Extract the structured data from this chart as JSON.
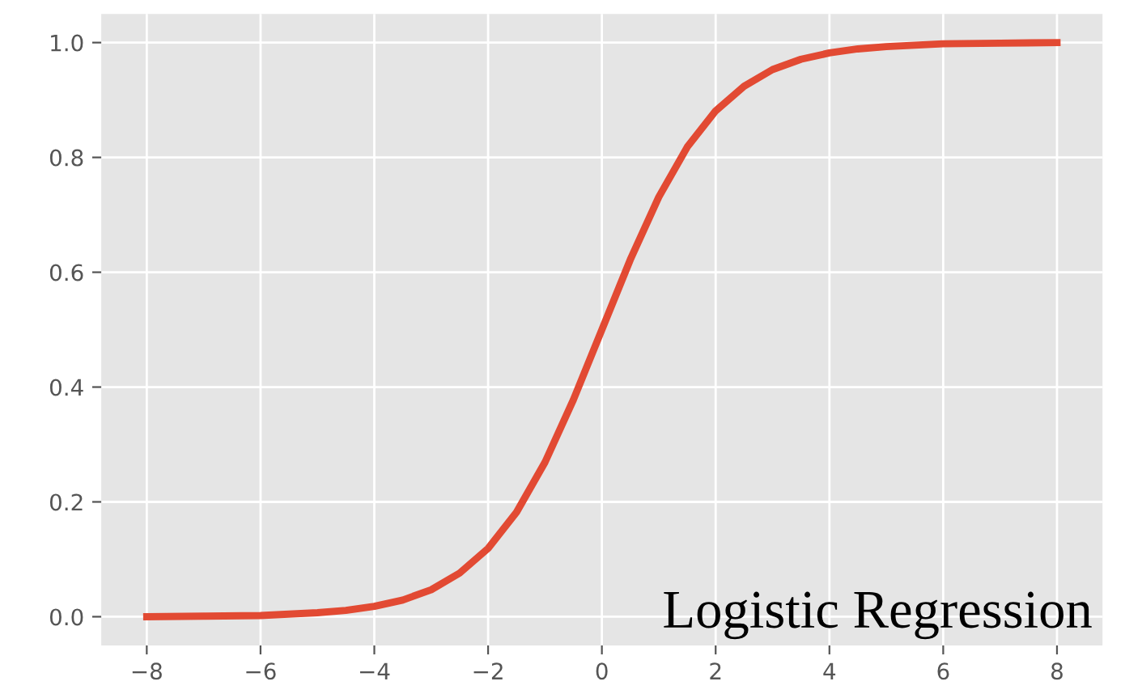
{
  "chart_data": {
    "type": "line",
    "x": [
      -8,
      -7,
      -6,
      -5,
      -4.5,
      -4,
      -3.5,
      -3,
      -2.5,
      -2,
      -1.5,
      -1,
      -0.5,
      0,
      0.5,
      1,
      1.5,
      2,
      2.5,
      3,
      3.5,
      4,
      4.5,
      5,
      6,
      7,
      8
    ],
    "series": [
      {
        "color": "#e24a33",
        "values": [
          0.0,
          0.001,
          0.002,
          0.007,
          0.011,
          0.018,
          0.029,
          0.047,
          0.076,
          0.119,
          0.182,
          0.269,
          0.378,
          0.5,
          0.622,
          0.731,
          0.818,
          0.881,
          0.924,
          0.953,
          0.971,
          0.982,
          0.989,
          0.993,
          0.998,
          0.999,
          1.0
        ]
      }
    ],
    "xlim": [
      -8.8,
      8.8
    ],
    "ylim": [
      -0.05,
      1.05
    ],
    "xticks": [
      {
        "value": -8,
        "label": "−8"
      },
      {
        "value": -6,
        "label": "−6"
      },
      {
        "value": -4,
        "label": "−4"
      },
      {
        "value": -2,
        "label": "−2"
      },
      0,
      2,
      4,
      6,
      8
    ],
    "yticks": [
      {
        "value": 0,
        "label": "0.0"
      },
      {
        "value": 0.2,
        "label": "0.2"
      },
      {
        "value": 0.4,
        "label": "0.4"
      },
      {
        "value": 0.6,
        "label": "0.6"
      },
      {
        "value": 0.8,
        "label": "0.8"
      },
      {
        "value": 1.0,
        "label": "1.0"
      }
    ],
    "grid": true,
    "marker": "none",
    "line_style": "solid",
    "annotations": [
      "Logistic Regression"
    ]
  }
}
